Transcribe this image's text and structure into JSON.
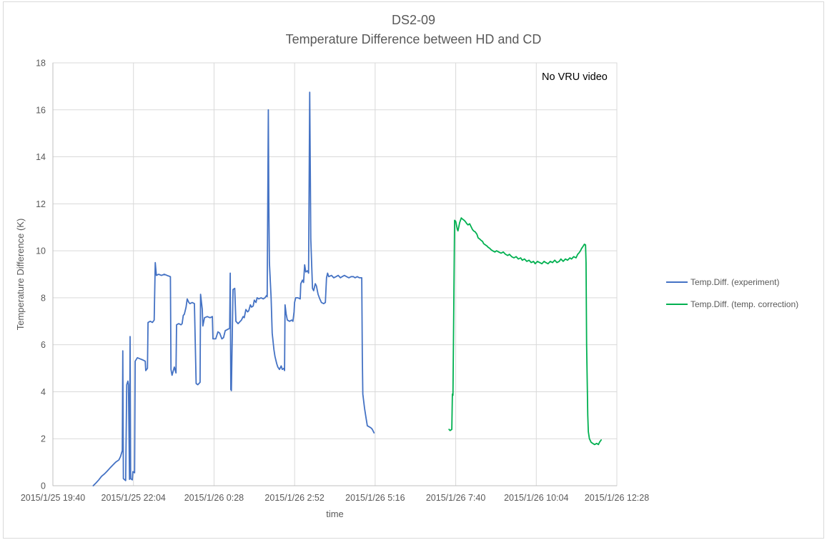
{
  "title": {
    "line1": "DS2-09",
    "line2": "Temperature Difference between HD and CD"
  },
  "annotation": "No VRU video",
  "colors": {
    "series_experiment": "#4472C4",
    "series_correction": "#00B050",
    "gridline": "#D9D9D9",
    "axis_line": "#BFBFBF",
    "text": "#595959",
    "annotation_text": "#000000",
    "background": "#FFFFFF"
  },
  "chart_data": {
    "type": "line",
    "title": "DS2-09 Temperature Difference between HD and CD",
    "xlabel": "time",
    "ylabel": "Temperature Difference (K)",
    "ylim": [
      0,
      18
    ],
    "y_ticks": [
      0,
      2,
      4,
      6,
      8,
      10,
      12,
      14,
      16,
      18
    ],
    "grid": true,
    "legend_position": "right",
    "x_unit": "minutes since 2015/1/25 19:40",
    "x_range_minutes": [
      0,
      1008
    ],
    "x_tick_minutes": [
      0,
      144,
      288,
      432,
      576,
      720,
      864,
      1008
    ],
    "x_tick_labels": [
      "2015/1/25 19:40",
      "2015/1/25 22:04",
      "2015/1/26 0:28",
      "2015/1/26 2:52",
      "2015/1/26 5:16",
      "2015/1/26 7:40",
      "2015/1/26 10:04",
      "2015/1/26 12:28"
    ],
    "annotations": [
      "No VRU video"
    ],
    "series": [
      {
        "name": "Temp.Diff. (experiment)",
        "color": "#4472C4",
        "points": [
          [
            72,
            0
          ],
          [
            77,
            0.12
          ],
          [
            82,
            0.25
          ],
          [
            87,
            0.4
          ],
          [
            92,
            0.5
          ],
          [
            97,
            0.62
          ],
          [
            102,
            0.75
          ],
          [
            107,
            0.88
          ],
          [
            112,
            1.0
          ],
          [
            118,
            1.1
          ],
          [
            121,
            1.25
          ],
          [
            124,
            1.5
          ],
          [
            125,
            5.74
          ],
          [
            126,
            0.3
          ],
          [
            130,
            0.22
          ],
          [
            132,
            4.3
          ],
          [
            134,
            4.45
          ],
          [
            135,
            4.3
          ],
          [
            137,
            0.27
          ],
          [
            138,
            6.35
          ],
          [
            139,
            0.3
          ],
          [
            142,
            0.25
          ],
          [
            143,
            0.6
          ],
          [
            146,
            0.55
          ],
          [
            147,
            5.3
          ],
          [
            151,
            5.45
          ],
          [
            156,
            5.4
          ],
          [
            161,
            5.35
          ],
          [
            165,
            5.3
          ],
          [
            166,
            4.9
          ],
          [
            169,
            5.0
          ],
          [
            170,
            6.95
          ],
          [
            174,
            7.0
          ],
          [
            178,
            6.95
          ],
          [
            181,
            7.05
          ],
          [
            183,
            9.5
          ],
          [
            185,
            8.95
          ],
          [
            189,
            9.0
          ],
          [
            194,
            8.95
          ],
          [
            199,
            9.0
          ],
          [
            204,
            8.95
          ],
          [
            210,
            8.9
          ],
          [
            211,
            4.95
          ],
          [
            213,
            4.7
          ],
          [
            217,
            5.05
          ],
          [
            220,
            4.8
          ],
          [
            221,
            6.85
          ],
          [
            225,
            6.9
          ],
          [
            229,
            6.85
          ],
          [
            231,
            6.9
          ],
          [
            233,
            7.25
          ],
          [
            235,
            7.3
          ],
          [
            238,
            7.6
          ],
          [
            240,
            7.95
          ],
          [
            243,
            7.8
          ],
          [
            245,
            7.75
          ],
          [
            249,
            7.8
          ],
          [
            253,
            7.75
          ],
          [
            256,
            4.35
          ],
          [
            259,
            4.3
          ],
          [
            263,
            4.4
          ],
          [
            264,
            8.15
          ],
          [
            267,
            7.5
          ],
          [
            268,
            6.8
          ],
          [
            271,
            7.15
          ],
          [
            276,
            7.2
          ],
          [
            281,
            7.15
          ],
          [
            285,
            7.2
          ],
          [
            286,
            6.25
          ],
          [
            291,
            6.25
          ],
          [
            295,
            6.55
          ],
          [
            298,
            6.5
          ],
          [
            302,
            6.25
          ],
          [
            305,
            6.3
          ],
          [
            308,
            6.6
          ],
          [
            312,
            6.65
          ],
          [
            316,
            6.7
          ],
          [
            317,
            9.05
          ],
          [
            318,
            4.1
          ],
          [
            319,
            4.05
          ],
          [
            322,
            8.35
          ],
          [
            325,
            8.4
          ],
          [
            327,
            7.0
          ],
          [
            331,
            6.9
          ],
          [
            335,
            7.0
          ],
          [
            337,
            7.05
          ],
          [
            340,
            7.2
          ],
          [
            342,
            7.15
          ],
          [
            345,
            7.5
          ],
          [
            348,
            7.4
          ],
          [
            350,
            7.45
          ],
          [
            353,
            7.7
          ],
          [
            355,
            7.6
          ],
          [
            358,
            7.65
          ],
          [
            360,
            7.9
          ],
          [
            363,
            7.8
          ],
          [
            365,
            8.0
          ],
          [
            368,
            7.95
          ],
          [
            372,
            8.0
          ],
          [
            376,
            7.95
          ],
          [
            379,
            8.0
          ],
          [
            382,
            8.1
          ],
          [
            383,
            8.05
          ],
          [
            385,
            16.0
          ],
          [
            386,
            12.0
          ],
          [
            387,
            9.5
          ],
          [
            390,
            8.0
          ],
          [
            392,
            6.5
          ],
          [
            395,
            5.8
          ],
          [
            397,
            5.5
          ],
          [
            400,
            5.2
          ],
          [
            402,
            5.05
          ],
          [
            405,
            4.95
          ],
          [
            408,
            5.1
          ],
          [
            410,
            4.95
          ],
          [
            413,
            5.0
          ],
          [
            414,
            4.9
          ],
          [
            415,
            7.7
          ],
          [
            417,
            7.3
          ],
          [
            419,
            7.05
          ],
          [
            423,
            7.0
          ],
          [
            427,
            7.05
          ],
          [
            429,
            7.0
          ],
          [
            431,
            7.4
          ],
          [
            432,
            7.8
          ],
          [
            434,
            8.0
          ],
          [
            438,
            8.0
          ],
          [
            442,
            7.95
          ],
          [
            443,
            8.6
          ],
          [
            446,
            8.75
          ],
          [
            448,
            8.65
          ],
          [
            450,
            9.4
          ],
          [
            452,
            9.1
          ],
          [
            455,
            9.15
          ],
          [
            457,
            9.05
          ],
          [
            459,
            16.75
          ],
          [
            460,
            13.5
          ],
          [
            461,
            10.5
          ],
          [
            464,
            8.4
          ],
          [
            466,
            8.3
          ],
          [
            469,
            8.6
          ],
          [
            471,
            8.5
          ],
          [
            474,
            8.15
          ],
          [
            477,
            7.95
          ],
          [
            480,
            7.8
          ],
          [
            484,
            7.75
          ],
          [
            487,
            7.8
          ],
          [
            489,
            8.85
          ],
          [
            491,
            9.05
          ],
          [
            493,
            8.9
          ],
          [
            498,
            8.95
          ],
          [
            502,
            8.85
          ],
          [
            506,
            8.9
          ],
          [
            510,
            8.95
          ],
          [
            514,
            8.85
          ],
          [
            517,
            8.9
          ],
          [
            521,
            8.95
          ],
          [
            525,
            8.9
          ],
          [
            529,
            8.85
          ],
          [
            533,
            8.9
          ],
          [
            537,
            8.9
          ],
          [
            540,
            8.85
          ],
          [
            544,
            8.9
          ],
          [
            548,
            8.85
          ],
          [
            552,
            8.85
          ],
          [
            553,
            5.5
          ],
          [
            554,
            3.9
          ],
          [
            557,
            3.3
          ],
          [
            560,
            2.85
          ],
          [
            562,
            2.55
          ],
          [
            566,
            2.5
          ],
          [
            569,
            2.45
          ],
          [
            571,
            2.4
          ],
          [
            574,
            2.25
          ]
        ]
      },
      {
        "name": "Temp.Diff. (temp. correction)",
        "color": "#00B050",
        "points": [
          [
            708,
            2.4
          ],
          [
            710,
            2.35
          ],
          [
            713,
            2.4
          ],
          [
            714,
            3.9
          ],
          [
            715,
            3.85
          ],
          [
            718,
            11.3
          ],
          [
            720,
            11.25
          ],
          [
            723,
            10.9
          ],
          [
            724,
            10.85
          ],
          [
            727,
            11.2
          ],
          [
            730,
            11.4
          ],
          [
            732,
            11.35
          ],
          [
            735,
            11.3
          ],
          [
            737,
            11.25
          ],
          [
            740,
            11.15
          ],
          [
            742,
            11.1
          ],
          [
            745,
            11.15
          ],
          [
            747,
            11.05
          ],
          [
            750,
            10.9
          ],
          [
            752,
            10.85
          ],
          [
            755,
            10.8
          ],
          [
            758,
            10.7
          ],
          [
            760,
            10.55
          ],
          [
            763,
            10.5
          ],
          [
            765,
            10.45
          ],
          [
            768,
            10.4
          ],
          [
            770,
            10.3
          ],
          [
            773,
            10.25
          ],
          [
            776,
            10.2
          ],
          [
            778,
            10.15
          ],
          [
            781,
            10.1
          ],
          [
            783,
            10.05
          ],
          [
            786,
            10.0
          ],
          [
            790,
            9.95
          ],
          [
            793,
            10.0
          ],
          [
            797,
            9.95
          ],
          [
            801,
            9.9
          ],
          [
            805,
            9.95
          ],
          [
            809,
            9.85
          ],
          [
            813,
            9.8
          ],
          [
            816,
            9.85
          ],
          [
            820,
            9.75
          ],
          [
            824,
            9.7
          ],
          [
            828,
            9.75
          ],
          [
            832,
            9.65
          ],
          [
            836,
            9.7
          ],
          [
            839,
            9.6
          ],
          [
            843,
            9.65
          ],
          [
            847,
            9.55
          ],
          [
            851,
            9.6
          ],
          [
            855,
            9.5
          ],
          [
            859,
            9.55
          ],
          [
            862,
            9.45
          ],
          [
            866,
            9.55
          ],
          [
            870,
            9.5
          ],
          [
            874,
            9.45
          ],
          [
            878,
            9.55
          ],
          [
            881,
            9.5
          ],
          [
            885,
            9.45
          ],
          [
            889,
            9.55
          ],
          [
            893,
            9.5
          ],
          [
            897,
            9.6
          ],
          [
            901,
            9.5
          ],
          [
            905,
            9.55
          ],
          [
            908,
            9.65
          ],
          [
            912,
            9.55
          ],
          [
            916,
            9.65
          ],
          [
            920,
            9.6
          ],
          [
            924,
            9.7
          ],
          [
            927,
            9.65
          ],
          [
            931,
            9.75
          ],
          [
            935,
            9.7
          ],
          [
            938,
            9.85
          ],
          [
            940,
            9.9
          ],
          [
            943,
            10.0
          ],
          [
            945,
            10.1
          ],
          [
            948,
            10.2
          ],
          [
            950,
            10.28
          ],
          [
            952,
            10.25
          ],
          [
            953,
            9.5
          ],
          [
            954,
            6.0
          ],
          [
            956,
            3.0
          ],
          [
            957,
            2.3
          ],
          [
            959,
            2.0
          ],
          [
            962,
            1.85
          ],
          [
            965,
            1.8
          ],
          [
            968,
            1.75
          ],
          [
            972,
            1.8
          ],
          [
            975,
            1.75
          ],
          [
            977,
            1.85
          ],
          [
            980,
            1.95
          ]
        ]
      }
    ]
  }
}
